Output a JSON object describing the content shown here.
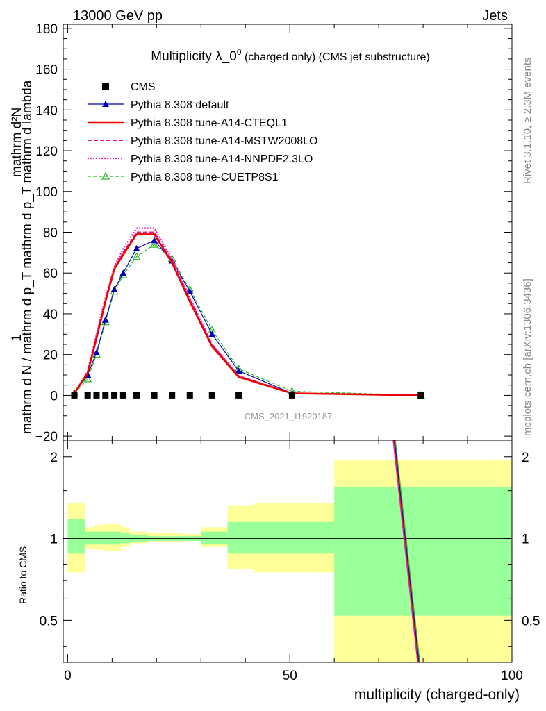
{
  "header": {
    "left": "13000 GeV pp",
    "right": "Jets",
    "rivet": "Rivet 3.1.10, ≥ 2.3M events",
    "mcplots": "mcplots.cern.ch [arXiv:1306.3436]",
    "watermark": "CMS_2021_I1920187"
  },
  "chart_data": {
    "type": "line",
    "title_main": "Multiplicity λ_0",
    "title_sup": "0",
    "title_tail": " (charged only) (CMS jet substructure)",
    "ylabel_top": "1",
    "ylabel_bottom": "mathrm d N / mathrm d p_T mathrm d p_T mathrm d lambda",
    "ylabel_num": "mathrm d²N",
    "xlabel": "multiplicity (charged-only)",
    "ratio_ylabel": "Ratio to CMS",
    "xlim": [
      -1,
      100
    ],
    "ylim": [
      -22,
      182
    ],
    "ratio_ylim": [
      0.35,
      2.3
    ],
    "xticks": [
      0,
      50,
      100
    ],
    "yticks": [
      -20,
      0,
      20,
      40,
      60,
      80,
      100,
      120,
      140,
      160,
      180
    ],
    "ratio_ticks": [
      "0.5",
      "1",
      "2"
    ],
    "ratio_tick_values": [
      0.5,
      1,
      2
    ],
    "x": [
      1.5,
      4.5,
      6.5,
      8.5,
      10.5,
      12.5,
      15.5,
      19.5,
      23.5,
      27.5,
      32.5,
      38.5,
      50.5,
      79.5
    ],
    "cms": [
      0,
      0,
      0,
      0,
      0,
      0,
      0,
      0,
      0,
      0,
      0,
      0,
      0,
      0
    ],
    "series": [
      {
        "name": "CMS",
        "color": "#000000",
        "style": "marker"
      },
      {
        "name": "Pythia 8.308 default",
        "color": "#0000bb",
        "style": "solid-thin",
        "marker": "triangle-filled",
        "values": [
          1,
          10,
          21,
          37,
          52,
          60,
          72,
          76,
          66,
          51,
          30,
          12,
          1,
          0
        ]
      },
      {
        "name": "Pythia 8.308 tune-A14-CTEQL1",
        "color": "#ee0000",
        "style": "solid-thick",
        "values": [
          1,
          11,
          28,
          46,
          62,
          69,
          79,
          79,
          65,
          46,
          24,
          9,
          1,
          0
        ]
      },
      {
        "name": "Pythia 8.308 tune-A14-MSTW2008LO",
        "color": "#ee1188",
        "style": "dashed",
        "values": [
          1,
          11,
          29,
          47,
          62,
          70,
          80,
          80,
          66,
          47,
          25,
          9.5,
          1,
          0
        ]
      },
      {
        "name": "Pythia 8.308 tune-A14-NNPDF2.3LO",
        "color": "#ee22cc",
        "style": "dotted",
        "values": [
          1,
          12,
          30,
          48,
          63,
          72,
          82,
          82,
          67,
          48,
          25,
          9.5,
          1,
          0
        ]
      },
      {
        "name": "Pythia 8.308 tune-CUETP8S1",
        "color": "#22bb22",
        "style": "dashed-thin",
        "marker": "triangle-open",
        "values": [
          1,
          8,
          20,
          36,
          51,
          59,
          68,
          74,
          67,
          52,
          32,
          13,
          2,
          0
        ]
      }
    ],
    "ratio_bands": [
      {
        "x0": 0,
        "x1": 4,
        "y_lo": 0.75,
        "y_hi": 1.35,
        "g_lo": 0.88,
        "g_hi": 1.18
      },
      {
        "x0": 4,
        "x1": 6,
        "y_lo": 0.92,
        "y_hi": 1.1,
        "g_lo": 0.95,
        "g_hi": 1.06
      },
      {
        "x0": 6,
        "x1": 8,
        "y_lo": 0.91,
        "y_hi": 1.12,
        "g_lo": 0.95,
        "g_hi": 1.06
      },
      {
        "x0": 8,
        "x1": 12,
        "y_lo": 0.9,
        "y_hi": 1.13,
        "g_lo": 0.95,
        "g_hi": 1.06
      },
      {
        "x0": 12,
        "x1": 14,
        "y_lo": 0.93,
        "y_hi": 1.1,
        "g_lo": 0.96,
        "g_hi": 1.05
      },
      {
        "x0": 14,
        "x1": 18,
        "y_lo": 0.96,
        "y_hi": 1.06,
        "g_lo": 0.97,
        "g_hi": 1.03
      },
      {
        "x0": 18,
        "x1": 22,
        "y_lo": 0.97,
        "y_hi": 1.05,
        "g_lo": 0.98,
        "g_hi": 1.02
      },
      {
        "x0": 22,
        "x1": 26,
        "y_lo": 0.97,
        "y_hi": 1.05,
        "g_lo": 0.98,
        "g_hi": 1.02
      },
      {
        "x0": 26,
        "x1": 30,
        "y_lo": 0.98,
        "y_hi": 1.04,
        "g_lo": 0.98,
        "g_hi": 1.02
      },
      {
        "x0": 30,
        "x1": 36,
        "y_lo": 0.93,
        "y_hi": 1.1,
        "g_lo": 0.95,
        "g_hi": 1.06
      },
      {
        "x0": 36,
        "x1": 42,
        "y_lo": 0.77,
        "y_hi": 1.32,
        "g_lo": 0.88,
        "g_hi": 1.15
      },
      {
        "x0": 42,
        "x1": 60,
        "y_lo": 0.75,
        "y_hi": 1.35,
        "g_lo": 0.88,
        "g_hi": 1.15
      },
      {
        "x0": 60,
        "x1": 100,
        "y_lo": 0.35,
        "y_hi": 1.95,
        "g_lo": 0.52,
        "g_hi": 1.55
      }
    ],
    "ratio_line": {
      "x0": 73.5,
      "y0": 2.3,
      "x1": 79,
      "y1": 0.35
    }
  }
}
